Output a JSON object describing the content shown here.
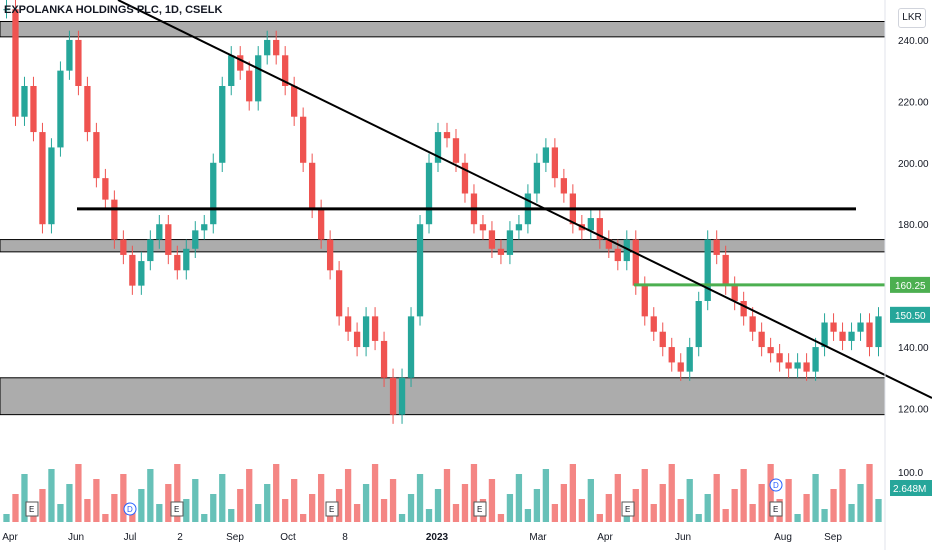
{
  "chart_title": "EXPOLANKA HOLDINGS PLC, 1D, CSELK",
  "currency": "LKR",
  "colors": {
    "up": "#26a69a",
    "down": "#ef5350",
    "zone": "#9e9e9e",
    "trend": "#000000",
    "target": "#4caf50"
  },
  "chart_data": {
    "type": "candlestick",
    "ylim": [
      113,
      253
    ],
    "y_ticks": [
      240.0,
      220.0,
      200.0,
      180.0,
      160.0,
      140.0,
      120.0
    ],
    "x_ticks": [
      "Apr",
      "Jun",
      "Jul",
      "2",
      "Sep",
      "Oct",
      "8",
      "2023",
      "Mar",
      "Apr",
      "Jun",
      "Aug",
      "Sep"
    ],
    "price_labels": [
      {
        "text": "160.25",
        "value": 160.25,
        "color": "#4caf50"
      },
      {
        "text": "150.50",
        "value": 150.5,
        "color": "#26a69a"
      }
    ],
    "volume_labels": {
      "axis": "100.0",
      "last": "2.648M"
    },
    "zones": [
      [
        241,
        246
      ],
      [
        171,
        175
      ],
      [
        118,
        130
      ]
    ],
    "horizontal_line": {
      "value": 185
    },
    "target_line": {
      "value": 160.25
    },
    "trendline": {
      "from": [
        -0.5,
        265
      ],
      "to": [
        2,
        115
      ]
    },
    "close_series": [
      250,
      215,
      225,
      210,
      180,
      205,
      230,
      240,
      225,
      210,
      195,
      188,
      175,
      170,
      160,
      168,
      175,
      180,
      170,
      165,
      172,
      178,
      180,
      200,
      225,
      235,
      230,
      220,
      235,
      240,
      235,
      225,
      215,
      200,
      185,
      175,
      165,
      150,
      145,
      140,
      150,
      142,
      130,
      118,
      130,
      150,
      180,
      200,
      210,
      208,
      200,
      190,
      180,
      178,
      172,
      170,
      178,
      180,
      190,
      200,
      205,
      195,
      190,
      180,
      178,
      182,
      175,
      172,
      168,
      175,
      160,
      150,
      145,
      140,
      135,
      132,
      140,
      155,
      175,
      170,
      160,
      155,
      150,
      145,
      140,
      138,
      135,
      133,
      135,
      132,
      140,
      148,
      145,
      142,
      145,
      148,
      140,
      150
    ],
    "events": [
      {
        "label": "E",
        "slot": 1
      },
      {
        "label": "D",
        "slot": 4
      },
      {
        "label": "E",
        "slot": 6
      },
      {
        "label": "E",
        "slot": 11
      },
      {
        "label": "E",
        "slot": 16
      },
      {
        "label": "E",
        "slot": 21
      },
      {
        "label": "E",
        "slot": 26
      }
    ],
    "volume_event": "D"
  }
}
